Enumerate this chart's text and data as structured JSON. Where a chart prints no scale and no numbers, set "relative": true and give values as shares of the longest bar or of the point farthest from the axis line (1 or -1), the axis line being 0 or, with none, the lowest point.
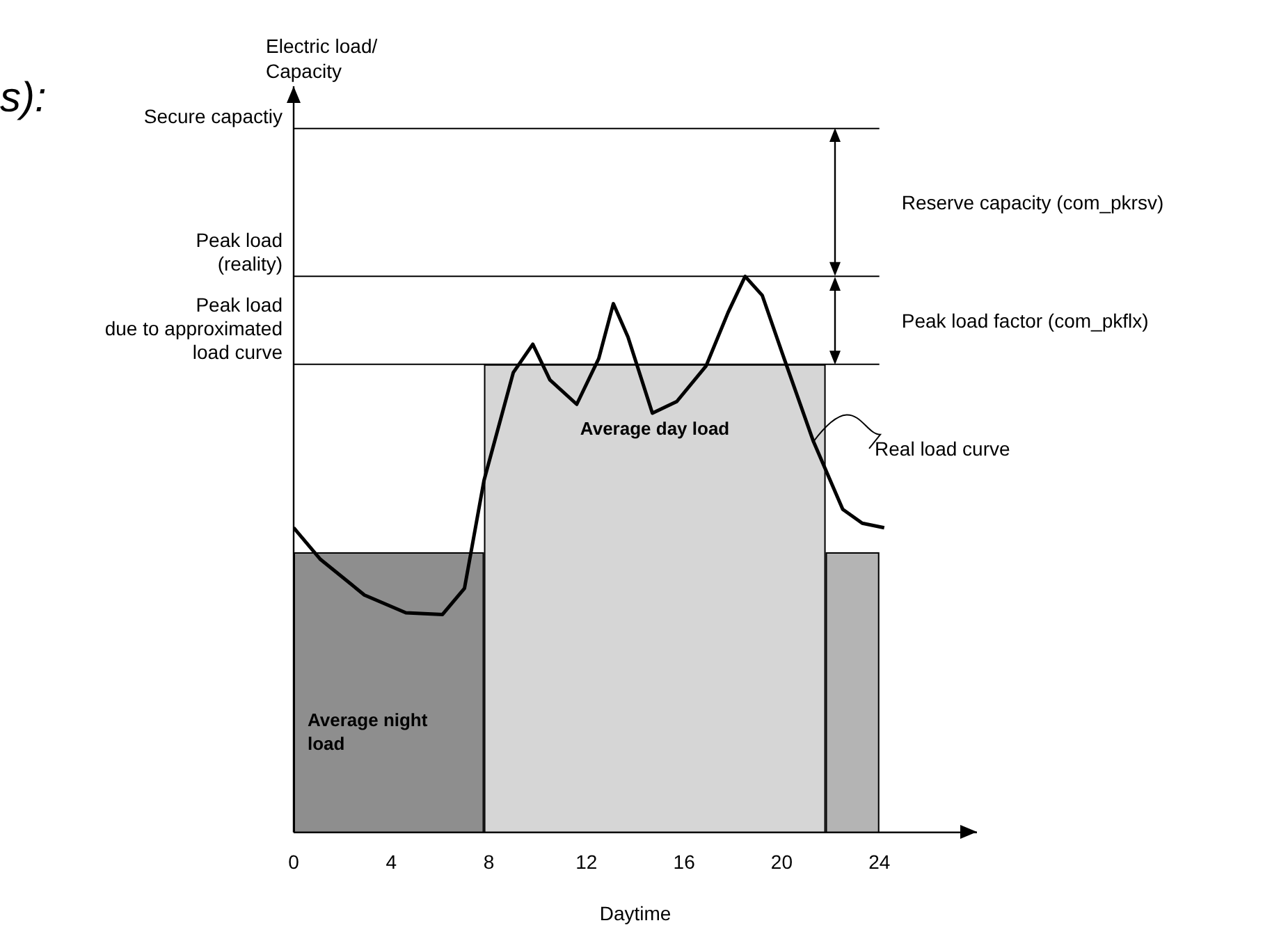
{
  "chart_data": {
    "type": "histogram",
    "relative": true,
    "xlabel": "Daytime",
    "xlim": [
      0,
      28
    ],
    "xticks": [
      0,
      4,
      8,
      12,
      16,
      20,
      24
    ],
    "grid": false,
    "legend": false,
    "marker": "none",
    "series": [
      {
        "bins": [
          0,
          7.8,
          21.8,
          24
        ],
        "values": [
          0.504,
          0.842,
          0.504
        ],
        "colors": [
          "#8e8e8e",
          "#d6d6d6",
          "#b4b4b4"
        ]
      },
      {
        "type": "line",
        "color": "#000000",
        "x": [
          0,
          1.1,
          2.9,
          4.6,
          6.1,
          7.0,
          7.8,
          9.0,
          9.8,
          10.5,
          11.6,
          12.5,
          13.1,
          13.7,
          14.7,
          15.7,
          16.9,
          17.8,
          18.5,
          19.2,
          20.1,
          21.3,
          22.5,
          23.3,
          24.2
        ],
        "values": [
          0.548,
          0.491,
          0.427,
          0.395,
          0.392,
          0.439,
          0.633,
          0.827,
          0.878,
          0.814,
          0.77,
          0.852,
          0.951,
          0.891,
          0.754,
          0.775,
          0.839,
          0.935,
          1,
          0.966,
          0.852,
          0.703,
          0.581,
          0.556,
          0.548
        ]
      }
    ],
    "ref_lines": [
      {
        "axis": "y",
        "value": 1.266,
        "label": "Secure capactiy"
      },
      {
        "axis": "y",
        "value": 1,
        "label": "Peak load\n(reality)"
      },
      {
        "axis": "y",
        "value": 0.842,
        "label": "Peak load\ndue to approximated\nload curve"
      }
    ],
    "annotations": [
      "s):",
      "Electric load/\nCapacity",
      "Reserve capacity (com_pkrsv)",
      "Peak load factor (com_pkflx)",
      "Average night load",
      "Average day load",
      {
        "text": "Real load curve",
        "x": 21.3,
        "y": 0.703
      }
    ]
  }
}
